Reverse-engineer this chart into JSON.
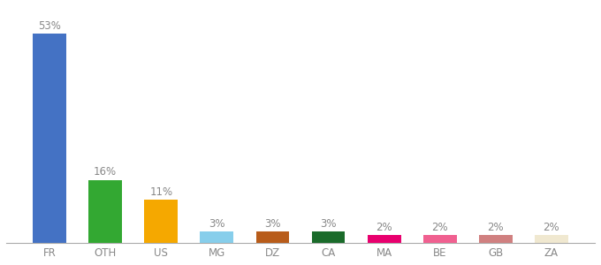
{
  "categories": [
    "FR",
    "OTH",
    "US",
    "MG",
    "DZ",
    "CA",
    "MA",
    "BE",
    "GB",
    "ZA"
  ],
  "values": [
    53,
    16,
    11,
    3,
    3,
    3,
    2,
    2,
    2,
    2
  ],
  "bar_colors": [
    "#4472c4",
    "#33a832",
    "#f5a800",
    "#87ceeb",
    "#b85c1a",
    "#1a6b2a",
    "#e8006e",
    "#f06090",
    "#d08080",
    "#f0e8d0"
  ],
  "ylabel": "",
  "xlabel": "",
  "ylim": [
    0,
    60
  ],
  "label_fontsize": 8.5,
  "tick_fontsize": 8.5,
  "bar_width": 0.6,
  "background_color": "#ffffff",
  "label_color": "#888888",
  "tick_color": "#888888",
  "spine_color": "#aaaaaa"
}
